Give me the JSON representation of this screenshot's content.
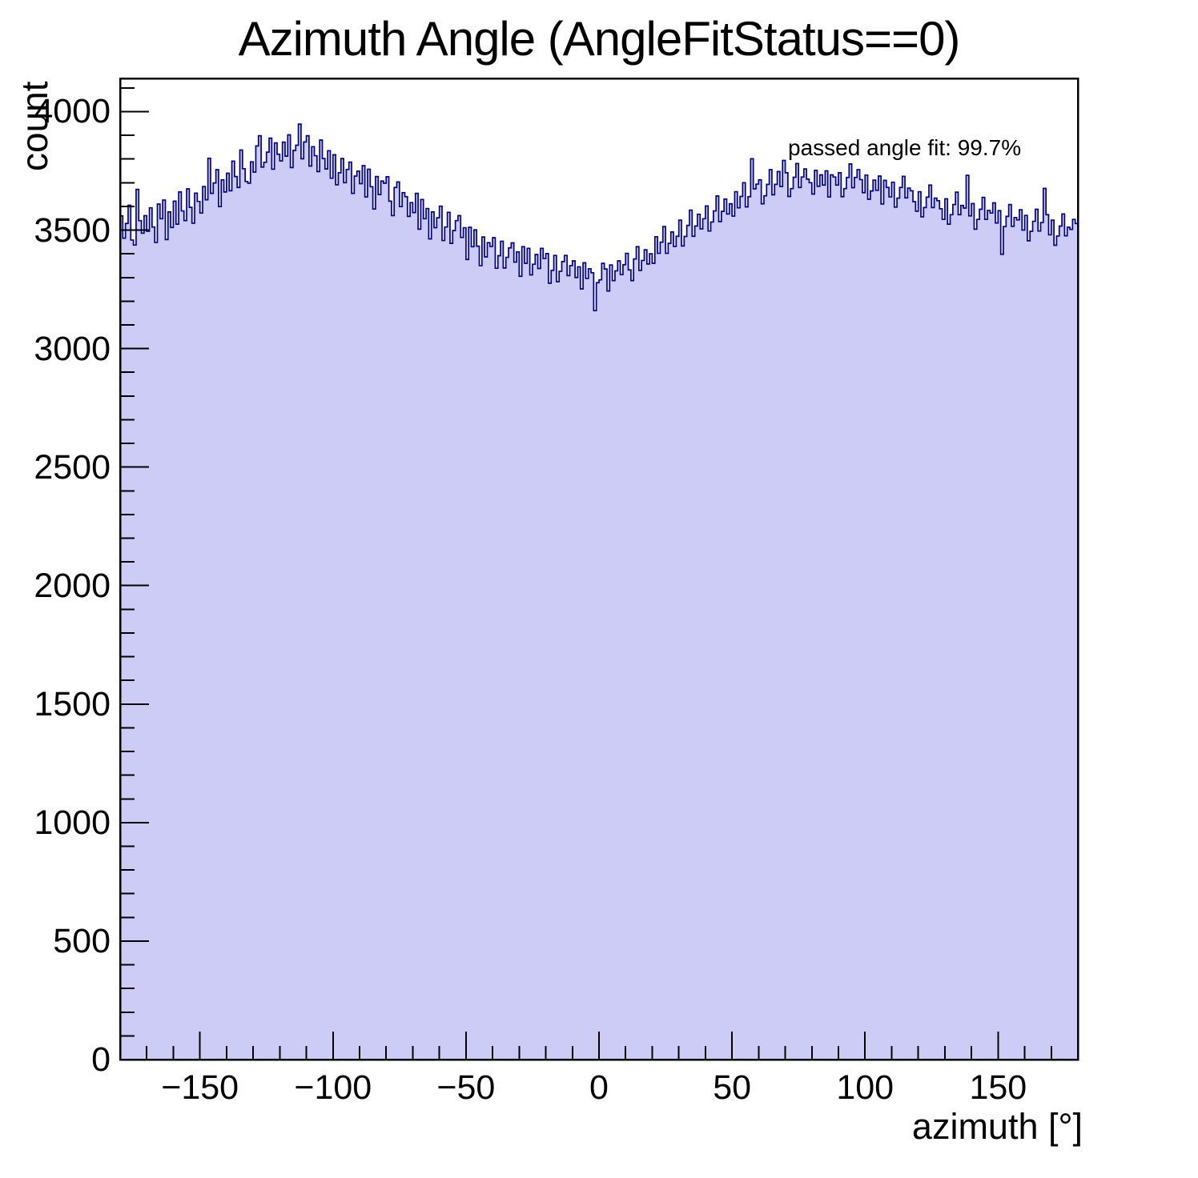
{
  "colors": {
    "hist_fill": "#ccccf6",
    "hist_line": "#00008c",
    "frame": "#000000",
    "text": "#000000",
    "background": "#ffffff"
  },
  "chart_data": {
    "type": "bar",
    "subtype": "histogram",
    "title": "Azimuth Angle (AngleFitStatus==0)",
    "xlabel": "azimuth [°]",
    "ylabel": "count",
    "annotation": "passed angle fit: 99.7%",
    "xlim": [
      -180,
      180
    ],
    "ylim": [
      0,
      4140
    ],
    "bin_width": 1,
    "x_start": -180,
    "grid": false,
    "legend": "none",
    "axes": {
      "x": {
        "major_ticks": [
          {
            "value": -150,
            "label": "−150"
          },
          {
            "value": -100,
            "label": "−100"
          },
          {
            "value": -50,
            "label": "−50"
          },
          {
            "value": 0,
            "label": "0"
          },
          {
            "value": 50,
            "label": "50"
          },
          {
            "value": 100,
            "label": "100"
          },
          {
            "value": 150,
            "label": "150"
          }
        ],
        "minor_step": 10
      },
      "y": {
        "major_ticks": [
          {
            "value": 0,
            "label": "0"
          },
          {
            "value": 500,
            "label": "500"
          },
          {
            "value": 1000,
            "label": "1000"
          },
          {
            "value": 1500,
            "label": "1500"
          },
          {
            "value": 2000,
            "label": "2000"
          },
          {
            "value": 2500,
            "label": "2500"
          },
          {
            "value": 3000,
            "label": "3000"
          },
          {
            "value": 3500,
            "label": "3500"
          },
          {
            "value": 4000,
            "label": "4000"
          }
        ],
        "minor_step": 100
      }
    },
    "values": [
      3560,
      3466,
      3528,
      3605,
      3458,
      3437,
      3672,
      3540,
      3487,
      3561,
      3495,
      3594,
      3513,
      3448,
      3610,
      3548,
      3627,
      3460,
      3577,
      3511,
      3622,
      3525,
      3661,
      3581,
      3540,
      3674,
      3596,
      3529,
      3656,
      3621,
      3572,
      3684,
      3628,
      3803,
      3655,
      3699,
      3755,
      3599,
      3712,
      3661,
      3740,
      3666,
      3791,
      3726,
      3680,
      3838,
      3759,
      3705,
      3698,
      3788,
      3745,
      3855,
      3898,
      3766,
      3786,
      3829,
      3888,
      3757,
      3868,
      3820,
      3792,
      3871,
      3812,
      3902,
      3764,
      3836,
      3858,
      3947,
      3801,
      3872,
      3898,
      3770,
      3852,
      3814,
      3747,
      3880,
      3802,
      3758,
      3835,
      3719,
      3818,
      3691,
      3742,
      3802,
      3700,
      3756,
      3787,
      3655,
      3728,
      3749,
      3696,
      3772,
      3640,
      3757,
      3683,
      3589,
      3726,
      3650,
      3707,
      3698,
      3725,
      3622,
      3561,
      3680,
      3703,
      3599,
      3658,
      3641,
      3558,
      3616,
      3574,
      3655,
      3504,
      3629,
      3548,
      3591,
      3463,
      3577,
      3510,
      3552,
      3601,
      3456,
      3513,
      3575,
      3444,
      3498,
      3540,
      3561,
      3469,
      3510,
      3376,
      3512,
      3430,
      3501,
      3432,
      3350,
      3471,
      3387,
      3447,
      3431,
      3468,
      3339,
      3392,
      3453,
      3340,
      3385,
      3425,
      3446,
      3365,
      3408,
      3305,
      3430,
      3360,
      3423,
      3311,
      3356,
      3397,
      3338,
      3423,
      3380,
      3401,
      3276,
      3330,
      3393,
      3282,
      3326,
      3367,
      3393,
      3308,
      3350,
      3370,
      3300,
      3345,
      3252,
      3362,
      3296,
      3337,
      3320,
      3160,
      3278,
      3290,
      3360,
      3336,
      3243,
      3353,
      3287,
      3328,
      3370,
      3312,
      3354,
      3402,
      3332,
      3287,
      3378,
      3430,
      3330,
      3372,
      3417,
      3357,
      3400,
      3360,
      3472,
      3402,
      3449,
      3515,
      3402,
      3444,
      3492,
      3431,
      3474,
      3542,
      3433,
      3473,
      3520,
      3584,
      3474,
      3517,
      3567,
      3505,
      3548,
      3602,
      3496,
      3534,
      3581,
      3644,
      3536,
      3579,
      3631,
      3568,
      3611,
      3559,
      3662,
      3594,
      3642,
      3700,
      3598,
      3641,
      3801,
      3674,
      3694,
      3712,
      3611,
      3645,
      3693,
      3755,
      3649,
      3693,
      3747,
      3684,
      3794,
      3742,
      3642,
      3675,
      3723,
      3781,
      3680,
      3724,
      3758,
      3715,
      3700,
      3652,
      3752,
      3685,
      3733,
      3690,
      3750,
      3640,
      3733,
      3724,
      3690,
      3742,
      3641,
      3675,
      3722,
      3779,
      3679,
      3722,
      3755,
      3713,
      3658,
      3732,
      3630,
      3665,
      3711,
      3668,
      3728,
      3610,
      3710,
      3680,
      3640,
      3702,
      3597,
      3635,
      3680,
      3727,
      3636,
      3677,
      3666,
      3620,
      3580,
      3662,
      3556,
      3595,
      3639,
      3690,
      3595,
      3635,
      3624,
      3590,
      3545,
      3632,
      3525,
      3565,
      3608,
      3660,
      3565,
      3604,
      3593,
      3731,
      3560,
      3612,
      3504,
      3545,
      3588,
      3638,
      3545,
      3583,
      3572,
      3615,
      3530,
      3582,
      3398,
      3515,
      3558,
      3608,
      3516,
      3553,
      3543,
      3586,
      3500,
      3562,
      3455,
      3495,
      3537,
      3588,
      3496,
      3532,
      3676,
      3565,
      3480,
      3542,
      3436,
      3475,
      3517,
      3568,
      3476,
      3512,
      3503,
      3545,
      3528
    ]
  }
}
